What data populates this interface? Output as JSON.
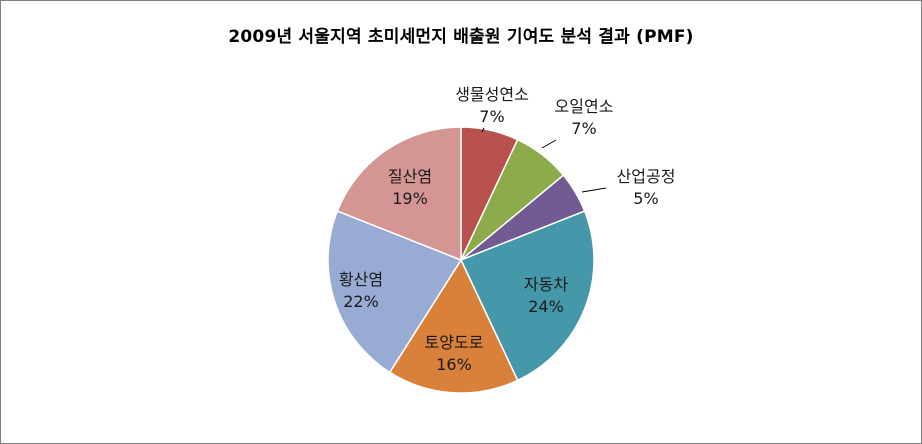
{
  "chart_data": {
    "type": "pie",
    "title": "2009년 서울지역 초미세먼지 배출원 기여도 분석 결과 (PMF)",
    "slices": [
      {
        "label": "생물성연소",
        "value": 7,
        "display": "7%",
        "color": "#b9514f"
      },
      {
        "label": "오일연소",
        "value": 7,
        "display": "7%",
        "color": "#8cab4a"
      },
      {
        "label": "산업공정",
        "value": 5,
        "display": "5%",
        "color": "#725a92"
      },
      {
        "label": "자동차",
        "value": 24,
        "display": "24%",
        "color": "#4597aa"
      },
      {
        "label": "토양도로",
        "value": 16,
        "display": "16%",
        "color": "#d9803b"
      },
      {
        "label": "황산염",
        "value": 22,
        "display": "22%",
        "color": "#97abd3"
      },
      {
        "label": "질산염",
        "value": 19,
        "display": "19%",
        "color": "#d49694"
      }
    ],
    "legend": "none",
    "start_angle": "12 o'clock, clockwise"
  }
}
